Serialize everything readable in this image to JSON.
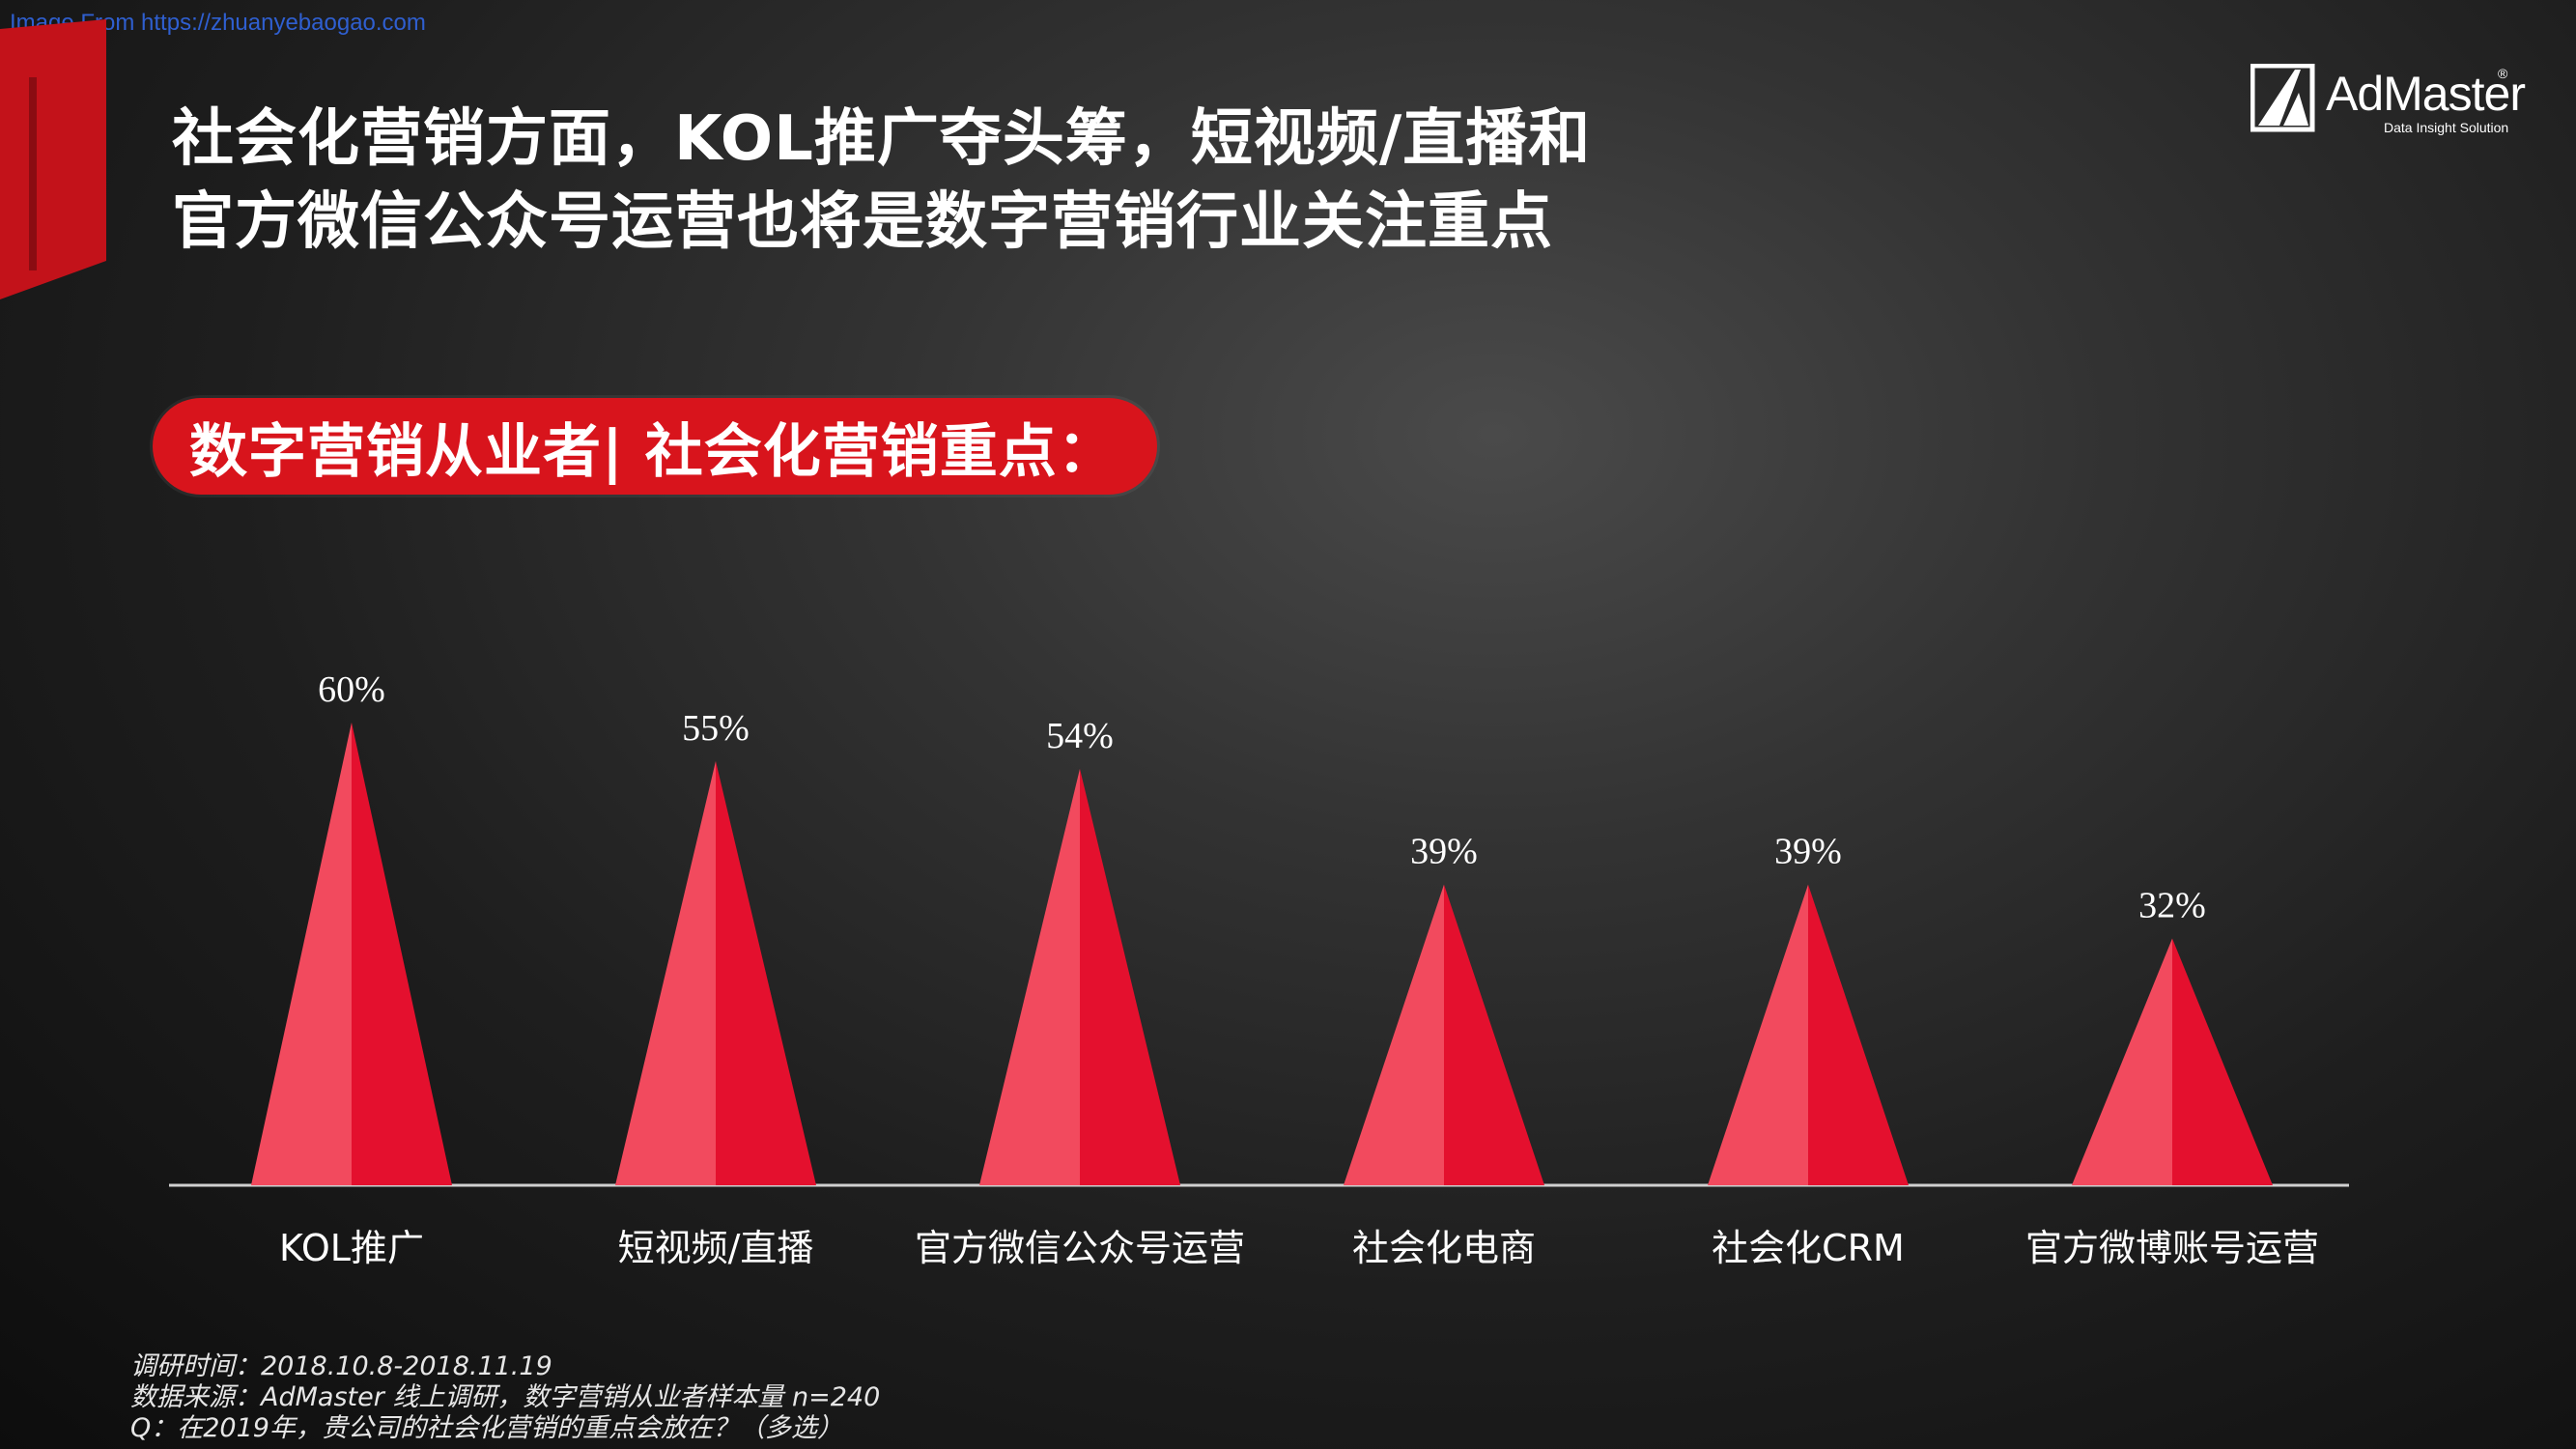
{
  "watermark": "Image From https://zhuanyebaogao.com",
  "title": {
    "line1": "社会化营销方面，KOL推广夺头筹，短视频/直播和",
    "line2": "官方微信公众号运营也将是数字营销行业关注重点"
  },
  "logo": {
    "name": "AdMaster",
    "registered": "®",
    "tagline": "Data Insight Solution"
  },
  "subtitle": "数字营销从业者| 社会化营销重点：",
  "chart_data": {
    "type": "bar",
    "bar_shape": "triangle",
    "categories": [
      "KOL推广",
      "短视频/直播",
      "官方微信公众号运营",
      "社会化电商",
      "社会化CRM",
      "官方微博账号运营"
    ],
    "values": [
      60,
      55,
      54,
      39,
      39,
      32
    ],
    "value_labels": [
      "60%",
      "55%",
      "54%",
      "39%",
      "39%",
      "32%"
    ],
    "unit": "%",
    "ylim": [
      0,
      66
    ],
    "grid": false,
    "colors": {
      "left_face": "#f24a5e",
      "right_face": "#e4102e",
      "baseline": "#d0d0d0"
    }
  },
  "footnotes": [
    "调研时间：2018.10.8-2018.11.19",
    "数据来源：AdMaster  线上调研，数字营销从业者样本量 n=240",
    "Q：在2019年，贵公司的社会化营销的重点会放在？（多选）"
  ],
  "colors": {
    "accent_red": "#d8141c",
    "text": "#ffffff",
    "watermark": "#2f5fd0"
  }
}
